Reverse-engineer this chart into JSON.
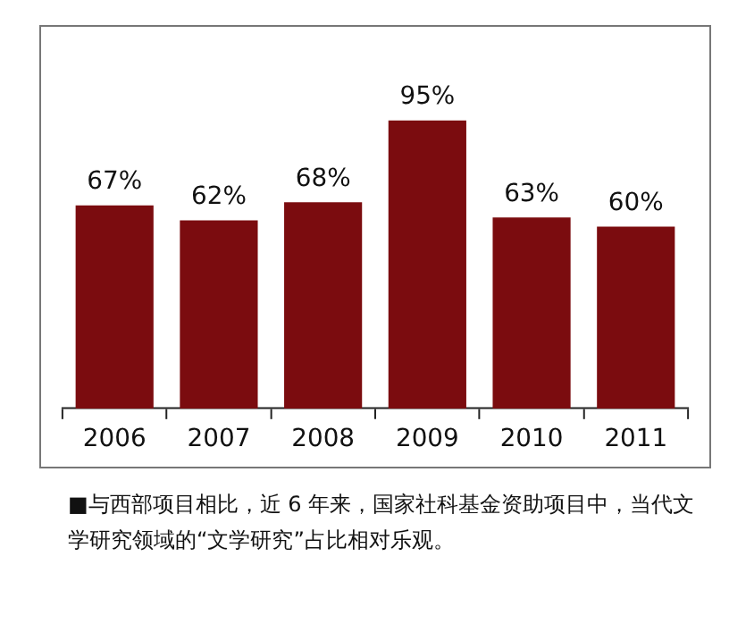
{
  "chart_data": {
    "type": "bar",
    "categories": [
      "2006",
      "2007",
      "2008",
      "2009",
      "2010",
      "2011"
    ],
    "values": [
      67,
      62,
      68,
      95,
      63,
      60
    ],
    "value_labels": [
      "67%",
      "62%",
      "68%",
      "95%",
      "63%",
      "60%"
    ],
    "color": "#7b0c0f",
    "grid": false,
    "legend": false,
    "annotations": [
      "■与西部项目相比，近 6 年来，国家社科基金资助项目中，当代文学研究领域的“文学研究”占比相对乐观。"
    ]
  }
}
